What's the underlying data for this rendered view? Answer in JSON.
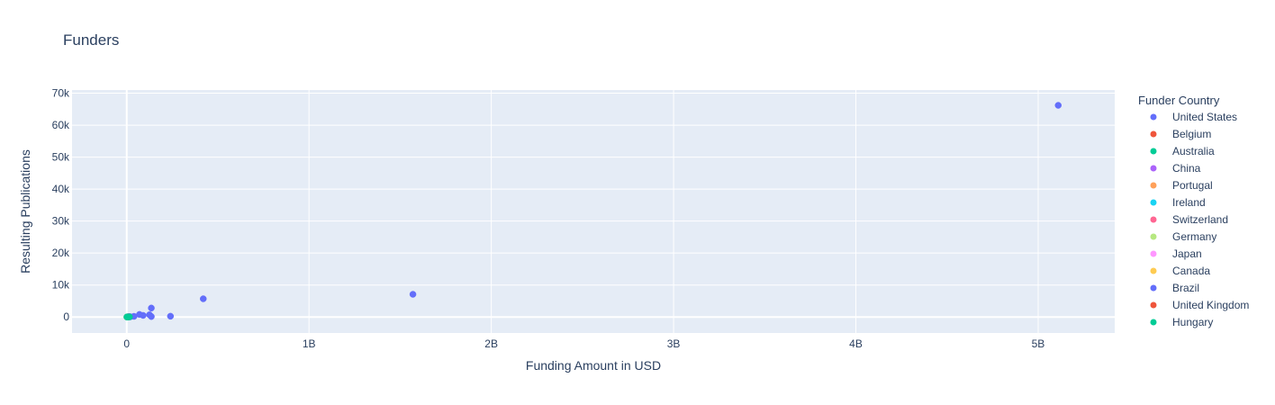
{
  "chart_data": {
    "type": "scatter",
    "title": "Funders",
    "xlabel": "Funding Amount in USD",
    "ylabel": "Resulting Publications",
    "xlim": [
      -300000000,
      5420000000
    ],
    "ylim": [
      -5000,
      71000
    ],
    "x_ticks": [
      0,
      1000000000,
      2000000000,
      3000000000,
      4000000000,
      5000000000
    ],
    "x_tick_labels": [
      "0",
      "1B",
      "2B",
      "3B",
      "4B",
      "5B"
    ],
    "y_ticks": [
      0,
      10000,
      20000,
      30000,
      40000,
      50000,
      60000,
      70000
    ],
    "y_tick_labels": [
      "0",
      "10k",
      "20k",
      "30k",
      "40k",
      "50k",
      "60k",
      "70k"
    ],
    "grid": true,
    "legend_title": "Funder Country",
    "legend_position": "right",
    "series": [
      {
        "name": "United States",
        "color": "#636efa",
        "points": [
          [
            5110000000,
            66200
          ],
          [
            1570000000,
            7100
          ],
          [
            420000000,
            5700
          ],
          [
            135000000,
            2800
          ],
          [
            240000000,
            250
          ],
          [
            70000000,
            800
          ],
          [
            90000000,
            500
          ],
          [
            125000000,
            700
          ],
          [
            135000000,
            150
          ],
          [
            40000000,
            200
          ],
          [
            15000000,
            100
          ],
          [
            5000000,
            30
          ]
        ]
      },
      {
        "name": "Belgium",
        "color": "#EF553B",
        "points": [
          [
            3000000,
            20
          ]
        ]
      },
      {
        "name": "Australia",
        "color": "#00cc96",
        "points": [
          [
            2000000,
            40
          ]
        ]
      },
      {
        "name": "China",
        "color": "#ab63fa",
        "points": [
          [
            10000000,
            60
          ]
        ]
      },
      {
        "name": "Portugal",
        "color": "#FFA15A",
        "points": [
          [
            1000000,
            10
          ]
        ]
      },
      {
        "name": "Ireland",
        "color": "#19d3f3",
        "points": [
          [
            4000000,
            15
          ]
        ]
      },
      {
        "name": "Switzerland",
        "color": "#FF6692",
        "points": [
          [
            6000000,
            30
          ]
        ]
      },
      {
        "name": "Germany",
        "color": "#B6E880",
        "points": [
          [
            8000000,
            50
          ]
        ]
      },
      {
        "name": "Japan",
        "color": "#FF97FF",
        "points": [
          [
            5000000,
            25
          ]
        ]
      },
      {
        "name": "Canada",
        "color": "#FECB52",
        "points": [
          [
            7000000,
            35
          ]
        ]
      },
      {
        "name": "Brazil",
        "color": "#636efa",
        "points": [
          [
            20000000,
            80
          ],
          [
            12000000,
            120
          ]
        ]
      },
      {
        "name": "United Kingdom",
        "color": "#EF553B",
        "points": [
          [
            9000000,
            45
          ]
        ]
      },
      {
        "name": "Hungary",
        "color": "#00cc96",
        "points": [
          [
            1000000,
            5
          ],
          [
            3000000,
            10
          ],
          [
            6000000,
            20
          ],
          [
            15000000,
            40
          ]
        ]
      }
    ]
  }
}
